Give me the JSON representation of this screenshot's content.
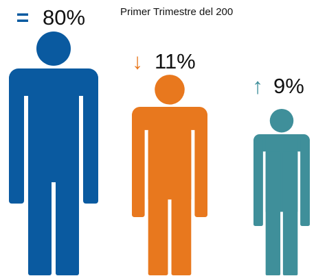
{
  "title": "Primer Trimestre  del 200",
  "figures": [
    {
      "indicator": "=",
      "label": "80%",
      "color": "#0a5aa0"
    },
    {
      "indicator": "↓",
      "label": "11%",
      "color": "#e8781e"
    },
    {
      "indicator": "↑",
      "label": "9%",
      "color": "#3f8f9a"
    }
  ]
}
